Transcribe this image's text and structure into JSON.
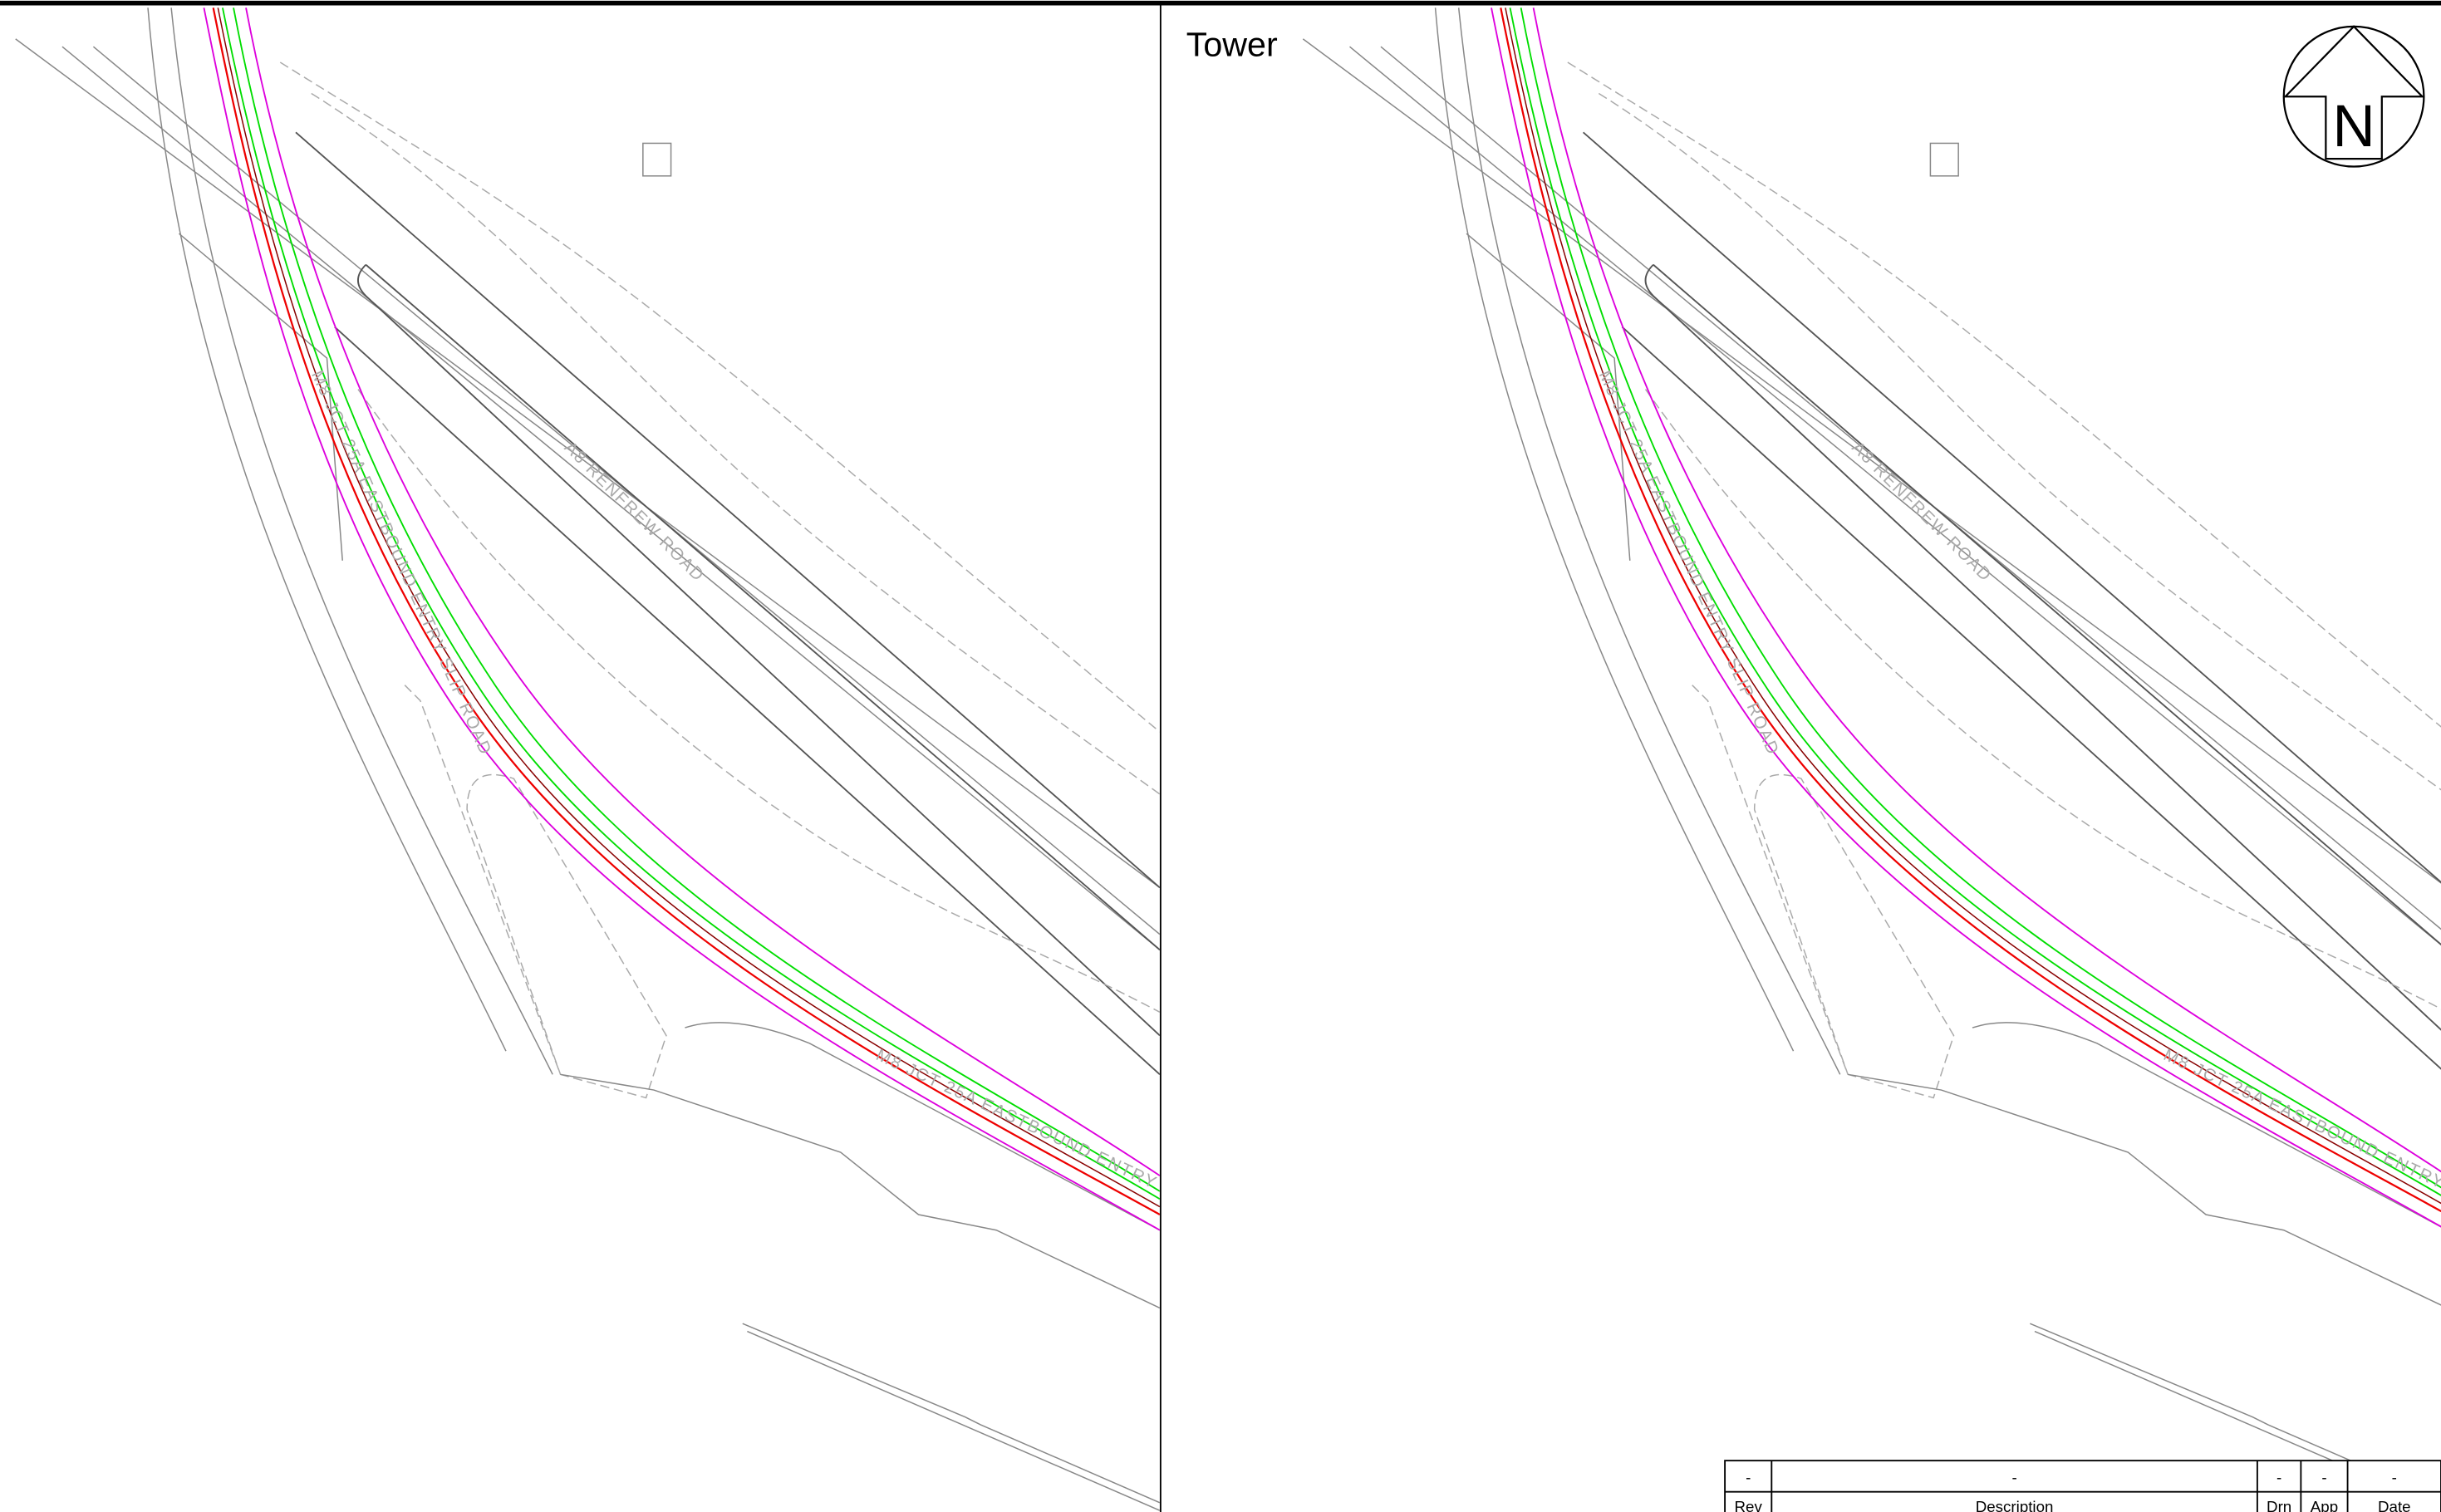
{
  "right_panel": {
    "title": "Tower",
    "north_arrow": "N"
  },
  "road_labels": {
    "a8": "A8 RENFREW ROAD",
    "m8": "M8 JCT 25A EASTBOUND ENTRY SLIP ROAD"
  },
  "title_block": {
    "row": [
      "-",
      "-",
      "-",
      "-",
      "-"
    ],
    "header": [
      "Rev",
      "Description",
      "Drn",
      "App",
      "Date"
    ]
  }
}
